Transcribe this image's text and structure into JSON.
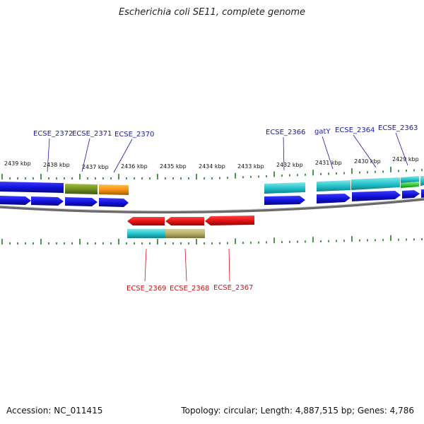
{
  "title": "Escherichia coli SE11, complete genome",
  "footer": {
    "accession": "Accession: NC_011415",
    "topology": "Topology: circular; Length: 4,887,515 bp; Genes: 4,786"
  },
  "scale": {
    "labels": [
      "2439 kbp",
      "2438 kbp",
      "2437 kbp",
      "2436 kbp",
      "2435 kbp",
      "2434 kbp",
      "2433 kbp",
      "2432 kbp",
      "2431 kbp",
      "2430 kbp",
      "2429 kbp"
    ]
  },
  "gene_labels_top": [
    "ECSE_2372",
    "ECSE_2371",
    "ECSE_2370",
    "ECSE_2366",
    "gatY",
    "ECSE_2364",
    "ECSE_2363"
  ],
  "gene_labels_bottom": [
    "ECSE_2369",
    "ECSE_2368",
    "ECSE_2367"
  ],
  "colors": {
    "forward_gene": "#1414e6",
    "reverse_gene": "#e61414",
    "cyan_feature": "#20c0c8",
    "olive_feature": "#6e8c20",
    "orange_feature": "#f0900a",
    "khaki_feature": "#b4aa64",
    "green_feature": "#32c832",
    "label_top": "#1a1aa8",
    "label_bottom": "#c81414",
    "tick": "#1e7d1e",
    "backbone": "#707070"
  }
}
